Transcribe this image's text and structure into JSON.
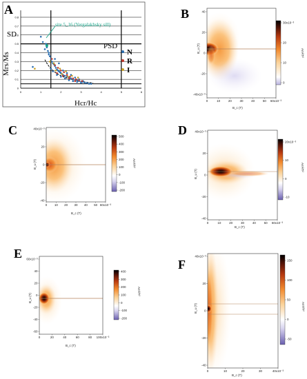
{
  "panels": {
    "A": {
      "letter": "A",
      "xlabel": "Hcr/Hc",
      "ylabel": "Mrs/Ms",
      "region_sd": "SD",
      "region_psd": "PSD",
      "annotation": "site 5_16 (Yergalakhsky sill)",
      "legend": [
        {
          "label": "N",
          "color": "#2c6fb0"
        },
        {
          "label": "R",
          "color": "#c0392b"
        },
        {
          "label": "I",
          "color": "#c9a227"
        }
      ],
      "xticks": [
        "0",
        "1",
        "2",
        "3",
        "4",
        "5",
        "6"
      ],
      "yticks": [
        "0",
        "0.1",
        "0.2",
        "0.3",
        "0.4",
        "0.5",
        "0.6",
        "0.7",
        "0.8"
      ]
    },
    "B": {
      "letter": "B",
      "xlabel": "B_c (T)",
      "ylabel": "B_u (T)",
      "xticks": [
        "0",
        "10",
        "20",
        "30",
        "40",
        "50",
        "60x10⁻³"
      ],
      "yticks": [
        "40",
        "20",
        "0",
        "-20",
        "-40x10⁻³"
      ],
      "cbar_ticks": [
        "30x10⁻³",
        "20",
        "10",
        "0"
      ],
      "cbar_label": "Am²/T²"
    },
    "C": {
      "letter": "C",
      "xlabel": "B_c (T)",
      "ylabel": "B_u (T)",
      "xticks": [
        "0",
        "10",
        "20",
        "30",
        "40",
        "50",
        "60x10⁻³"
      ],
      "yticks": [
        "40x10⁻³",
        "20",
        "0",
        "-20",
        "-40"
      ],
      "cbar_ticks": [
        "500",
        "400",
        "300",
        "200",
        "100",
        "0",
        "-100",
        "-200"
      ],
      "cbar_label": "Am²/T²"
    },
    "D": {
      "letter": "D",
      "xlabel": "B_c (T)",
      "ylabel": "B_u (T)",
      "xticks": [
        "0",
        "10",
        "20",
        "30",
        "40",
        "50",
        "60x10⁻³"
      ],
      "yticks": [
        "40x10⁻³",
        "20",
        "0",
        "-20",
        "-40"
      ],
      "cbar_ticks": [
        "20x10⁻³",
        "10",
        "0",
        "-10"
      ],
      "cbar_label": "Am²/T²"
    },
    "E": {
      "letter": "E",
      "xlabel": "B_c (T)",
      "ylabel": "B_u (T)",
      "xticks": [
        "0",
        "20",
        "40",
        "60",
        "80",
        "100x10⁻³"
      ],
      "yticks": [
        "60x10⁻³",
        "40",
        "20",
        "0",
        "-20",
        "-40",
        "-60"
      ],
      "cbar_ticks": [
        "400",
        "300",
        "200",
        "100",
        "0",
        "-100",
        "-200"
      ],
      "cbar_label": "Am²/T²"
    },
    "F": {
      "letter": "F",
      "xlabel": "B_c (T)",
      "ylabel": "B_u (T)",
      "xticks": [
        "0",
        "10",
        "20",
        "30",
        "40x10⁻³"
      ],
      "yticks": [
        "40x10⁻³",
        "20",
        "0",
        "-20",
        "-40"
      ],
      "cbar_ticks": [
        "150",
        "100",
        "50",
        "0",
        "-50"
      ],
      "cbar_label": "Am²/T²"
    }
  },
  "chart_data": [
    {
      "type": "scatter",
      "panel": "A",
      "xlabel": "Hcr/Hc",
      "ylabel": "Mrs/Ms",
      "xlim": [
        0,
        6
      ],
      "ylim": [
        0,
        0.8
      ],
      "grid": true,
      "legend_position": "right",
      "annotations": [
        "SD",
        "PSD",
        "site 5_16 (Yergalakhsky sill)"
      ],
      "series": [
        {
          "name": "N",
          "color": "#2c6fb0",
          "x": [
            1.1,
            1.25,
            1.3,
            1.35,
            1.4,
            1.45,
            1.5,
            1.55,
            1.6,
            1.65,
            1.7,
            1.75,
            1.8,
            1.85,
            1.9,
            1.95,
            2.0,
            2.05,
            2.1,
            2.15,
            2.2,
            2.3,
            2.4,
            2.5,
            2.6,
            2.7,
            2.8,
            2.9,
            3.0,
            3.1,
            3.2,
            3.3,
            3.4,
            3.5,
            1.7,
            1.9,
            2.1,
            2.3,
            2.5,
            2.7,
            2.9,
            3.1,
            1.5,
            1.6,
            1.8,
            2.0,
            2.2,
            2.4,
            2.6,
            2.8,
            3.0,
            0.6,
            1.0,
            1.2,
            1.4
          ],
          "y": [
            0.52,
            0.5,
            0.46,
            0.42,
            0.4,
            0.36,
            0.33,
            0.3,
            0.28,
            0.27,
            0.25,
            0.23,
            0.21,
            0.2,
            0.19,
            0.18,
            0.17,
            0.16,
            0.15,
            0.14,
            0.14,
            0.13,
            0.12,
            0.11,
            0.1,
            0.09,
            0.09,
            0.08,
            0.07,
            0.07,
            0.06,
            0.06,
            0.05,
            0.05,
            0.33,
            0.28,
            0.2,
            0.17,
            0.15,
            0.12,
            0.1,
            0.08,
            0.22,
            0.19,
            0.15,
            0.13,
            0.11,
            0.09,
            0.08,
            0.07,
            0.06,
            0.24,
            0.58,
            0.44,
            0.38
          ]
        },
        {
          "name": "R",
          "color": "#c0392b",
          "x": [
            1.55,
            1.7,
            1.85,
            2.0,
            2.15,
            2.3,
            2.45,
            2.6,
            2.75,
            2.9,
            3.05,
            1.8,
            2.1,
            2.4,
            2.7
          ],
          "y": [
            0.33,
            0.26,
            0.23,
            0.2,
            0.18,
            0.15,
            0.13,
            0.11,
            0.1,
            0.09,
            0.08,
            0.17,
            0.14,
            0.11,
            0.08
          ]
        },
        {
          "name": "I",
          "color": "#c9a227",
          "x": [
            1.45,
            1.65,
            1.95,
            2.25,
            2.55,
            2.85,
            1.75,
            2.05,
            2.35,
            0.7
          ],
          "y": [
            0.3,
            0.28,
            0.22,
            0.19,
            0.14,
            0.12,
            0.2,
            0.16,
            0.13,
            0.22
          ]
        }
      ]
    },
    {
      "type": "heatmap",
      "panel": "B",
      "xlabel": "B_c (T)",
      "ylabel": "B_u (T)",
      "xlim": [
        0,
        0.06
      ],
      "ylim": [
        -0.04,
        0.04
      ],
      "colorbar_range": [
        0,
        0.03
      ],
      "colorbar_label": "Am²/T²",
      "peak": {
        "x": 0.003,
        "y": 0.0
      }
    },
    {
      "type": "heatmap",
      "panel": "C",
      "xlabel": "B_c (T)",
      "ylabel": "B_u (T)",
      "xlim": [
        0,
        0.06
      ],
      "ylim": [
        -0.04,
        0.04
      ],
      "colorbar_range": [
        -200,
        500
      ],
      "colorbar_label": "Am²/T²",
      "peak": {
        "x": 0.002,
        "y": 0.0
      }
    },
    {
      "type": "heatmap",
      "panel": "D",
      "xlabel": "B_c (T)",
      "ylabel": "B_u (T)",
      "xlim": [
        0,
        0.06
      ],
      "ylim": [
        -0.04,
        0.04
      ],
      "colorbar_range": [
        -0.015,
        0.025
      ],
      "colorbar_label": "Am²/T²",
      "peak": {
        "x": 0.012,
        "y": -0.001
      }
    },
    {
      "type": "heatmap",
      "panel": "E",
      "xlabel": "B_c (T)",
      "ylabel": "B_u (T)",
      "xlim": [
        0,
        0.1
      ],
      "ylim": [
        -0.06,
        0.06
      ],
      "colorbar_range": [
        -200,
        400
      ],
      "colorbar_label": "Am²/T²",
      "peak": {
        "x": 0.005,
        "y": 0.0
      }
    },
    {
      "type": "heatmap",
      "panel": "F",
      "xlabel": "B_c (T)",
      "ylabel": "B_u (T)",
      "xlim": [
        0,
        0.04
      ],
      "ylim": [
        -0.045,
        0.045
      ],
      "colorbar_range": [
        -70,
        160
      ],
      "colorbar_label": "Am²/T²",
      "peak": {
        "x": 0.001,
        "y": 0.0
      }
    }
  ]
}
